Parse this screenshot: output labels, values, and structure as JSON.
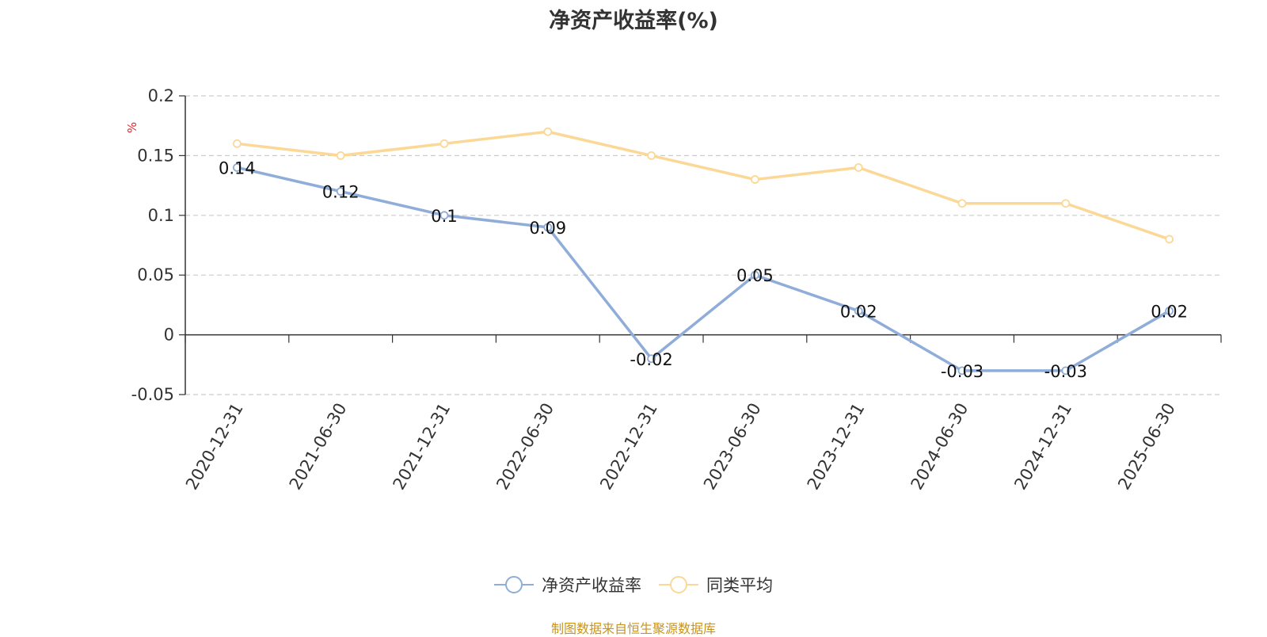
{
  "chart_data": {
    "type": "line",
    "title": "净资产收益率(%)",
    "ylabel": "%",
    "xlabel": "",
    "categories": [
      "2020-12-31",
      "2021-06-30",
      "2021-12-31",
      "2022-06-30",
      "2022-12-31",
      "2023-06-30",
      "2023-12-31",
      "2024-06-30",
      "2024-12-31",
      "2025-06-30"
    ],
    "series": [
      {
        "name": "净资产收益率",
        "values": [
          0.14,
          0.12,
          0.1,
          0.09,
          -0.02,
          0.05,
          0.02,
          -0.03,
          -0.03,
          0.02
        ],
        "color": "#8fadd8",
        "data_labels": true
      },
      {
        "name": "同类平均",
        "values": [
          0.16,
          0.15,
          0.16,
          0.17,
          0.15,
          0.13,
          0.14,
          0.11,
          0.11,
          0.08
        ],
        "color": "#fbd896",
        "data_labels": false
      }
    ],
    "y_ticks": [
      "0.2",
      "0.15",
      "0.1",
      "0.05",
      "0",
      "-0.05"
    ],
    "ylim": [
      -0.05,
      0.2
    ],
    "grid": true,
    "legend_position": "bottom"
  },
  "source_text": "制图数据来自恒生聚源数据库"
}
